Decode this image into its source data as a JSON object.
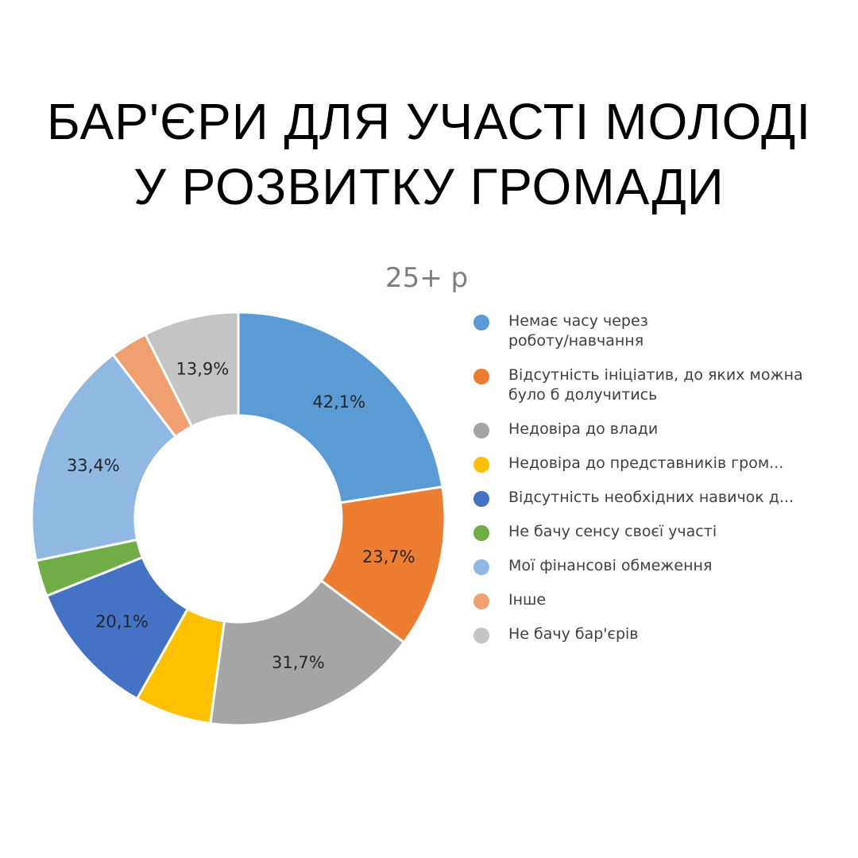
{
  "title": {
    "line1": "БАР'ЄРИ ДЛЯ УЧАСТІ МОЛОДІ",
    "line2": "У РОЗВИТКУ ГРОМАДИ"
  },
  "chart_data": {
    "type": "pie",
    "subtitle": "25+ р",
    "legend_position": "right",
    "categories": [
      "Немає часу через роботу/навчання",
      "Відсутність ініціатив, до яких можна було б долучитись",
      "Недовіра до влади",
      "Недовіра до представників гром...",
      "Відсутність необхідних навичок д...",
      "Не бачу сенсу своєї участі",
      "Мої фінансові обмеження",
      "Інше",
      "Не бачу бар'єрів"
    ],
    "values": [
      42.1,
      23.7,
      31.7,
      11.2,
      20.1,
      5.3,
      33.4,
      5.5,
      13.9
    ],
    "data_labels": [
      "42,1%",
      "23,7%",
      "31,7%",
      "",
      "20,1%",
      "",
      "33,4%",
      "",
      "13,9%"
    ],
    "colors": [
      "#5b9bd5",
      "#ed7d31",
      "#a5a5a5",
      "#ffc000",
      "#4472c4",
      "#70ad47",
      "#8fb9e2",
      "#f0a070",
      "#c4c4c4"
    ]
  }
}
